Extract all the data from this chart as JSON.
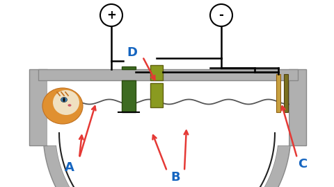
{
  "bg_color": "#ffffff",
  "label_color": "#1565C0",
  "arrow_color": "#e53935",
  "label_A": "A",
  "label_B": "B",
  "label_C": "C",
  "label_D": "D",
  "plus_symbol": "+",
  "minus_symbol": "-",
  "fig_width": 4.8,
  "fig_height": 2.7,
  "dpi": 100,
  "wall_color": "#b0b0b0",
  "wall_edge": "#888888",
  "green_dark": "#3d6b21",
  "green_light": "#8a9a20",
  "gold1": "#c8a040",
  "gold2": "#7a7020"
}
